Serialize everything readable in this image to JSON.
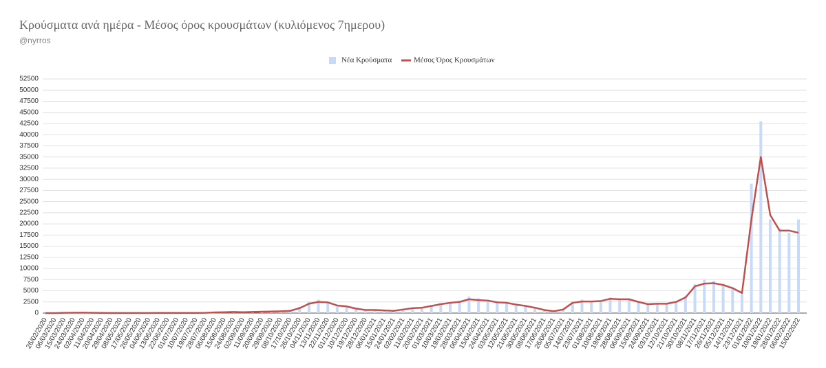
{
  "chart_data": {
    "type": "bar-line",
    "title": "Κρούσματα ανά ημέρα - Μέσος όρος κρουσμάτων (κυλιόμενος 7ημερου)",
    "subtitle": "@nyrros",
    "categories": [
      "26/02/2020",
      "06/03/2020",
      "15/03/2020",
      "24/03/2020",
      "02/04/2020",
      "11/04/2020",
      "20/04/2020",
      "29/04/2020",
      "08/05/2020",
      "17/05/2020",
      "26/05/2020",
      "04/06/2020",
      "13/06/2020",
      "22/06/2020",
      "01/07/2020",
      "10/07/2020",
      "19/07/2020",
      "28/07/2020",
      "06/08/2020",
      "15/08/2020",
      "24/08/2020",
      "02/09/2020",
      "11/09/2020",
      "20/09/2020",
      "29/09/2020",
      "08/10/2020",
      "17/10/2020",
      "26/10/2020",
      "04/11/2020",
      "13/11/2020",
      "22/11/2020",
      "01/12/2020",
      "10/12/2020",
      "19/12/2020",
      "28/12/2020",
      "06/01/2021",
      "15/01/2021",
      "24/01/2021",
      "02/02/2021",
      "11/02/2021",
      "20/02/2021",
      "01/03/2021",
      "10/03/2021",
      "19/03/2021",
      "28/03/2021",
      "06/04/2021",
      "15/04/2021",
      "24/04/2021",
      "03/05/2021",
      "12/05/2021",
      "21/05/2021",
      "30/05/2021",
      "08/06/2021",
      "17/06/2021",
      "26/06/2021",
      "05/07/2021",
      "14/07/2021",
      "23/07/2021",
      "01/08/2021",
      "10/08/2021",
      "19/08/2021",
      "28/08/2021",
      "06/09/2021",
      "15/09/2021",
      "24/09/2021",
      "03/10/2021",
      "12/10/2021",
      "21/10/2021",
      "30/10/2021",
      "08/11/2021",
      "17/11/2021",
      "26/11/2021",
      "05/12/2021",
      "14/12/2021",
      "23/12/2021",
      "01/01/2022",
      "10/01/2022",
      "19/01/2022",
      "28/01/2022",
      "06/02/2022",
      "15/02/2022"
    ],
    "series": [
      {
        "name": "Νέα Κρούσματα",
        "kind": "bar",
        "color": "#c9daf8",
        "values": [
          0,
          10,
          60,
          90,
          110,
          40,
          25,
          20,
          15,
          10,
          8,
          25,
          30,
          35,
          30,
          35,
          45,
          70,
          180,
          230,
          280,
          210,
          260,
          320,
          380,
          450,
          600,
          1400,
          2600,
          3000,
          2300,
          1500,
          1300,
          900,
          500,
          800,
          600,
          450,
          900,
          1200,
          1300,
          1800,
          2200,
          2500,
          2800,
          3700,
          3300,
          3000,
          2600,
          2500,
          2000,
          1500,
          1100,
          600,
          350,
          900,
          2600,
          3000,
          2700,
          2800,
          3500,
          3200,
          3300,
          2600,
          1900,
          2200,
          2000,
          2600,
          3800,
          6500,
          7500,
          7200,
          6600,
          5800,
          4300,
          29000,
          43000,
          21000,
          19000,
          18000,
          21000
        ]
      },
      {
        "name": "Μέσος Όρος Κρουσμάτων",
        "kind": "line",
        "color": "#c0504d",
        "values": [
          0,
          5,
          50,
          80,
          100,
          50,
          30,
          20,
          15,
          15,
          10,
          20,
          30,
          30,
          30,
          30,
          40,
          60,
          150,
          200,
          250,
          200,
          250,
          300,
          350,
          400,
          500,
          1100,
          2100,
          2500,
          2400,
          1700,
          1500,
          1000,
          700,
          700,
          600,
          500,
          800,
          1100,
          1200,
          1600,
          2000,
          2300,
          2500,
          3100,
          2900,
          2800,
          2400,
          2300,
          1900,
          1600,
          1200,
          700,
          400,
          800,
          2300,
          2600,
          2600,
          2700,
          3200,
          3100,
          3100,
          2500,
          2000,
          2100,
          2100,
          2500,
          3500,
          6000,
          6600,
          6700,
          6300,
          5600,
          4500,
          21000,
          35000,
          22000,
          18500,
          18500,
          18000
        ]
      }
    ],
    "ylim": [
      0,
      52500
    ],
    "yticks": [
      0,
      2500,
      5000,
      7500,
      10000,
      12500,
      15000,
      17500,
      20000,
      22500,
      25000,
      27500,
      30000,
      32500,
      35000,
      37500,
      40000,
      42500,
      45000,
      47500,
      50000,
      52500
    ],
    "grid": true
  }
}
